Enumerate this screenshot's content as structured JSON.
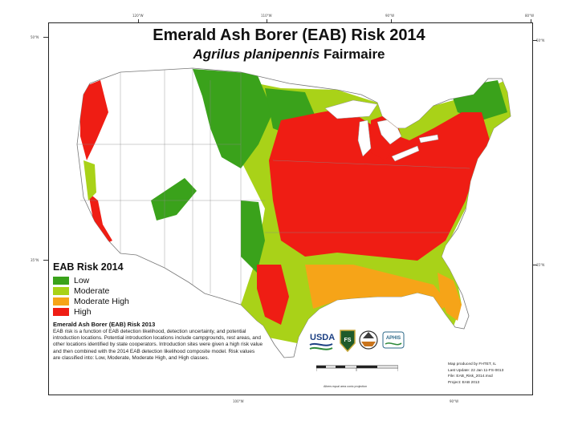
{
  "title": "Emerald Ash Borer (EAB) Risk 2014",
  "subtitle_species": "Agrilus planipennis",
  "subtitle_author": "Fairmaire",
  "legend": {
    "title": "EAB Risk 2014",
    "items": [
      {
        "label": "Low",
        "color": "#3aa21b"
      },
      {
        "label": "Moderate",
        "color": "#a9d218"
      },
      {
        "label": "Moderate High",
        "color": "#f6a418"
      },
      {
        "label": "High",
        "color": "#ef1d14"
      }
    ]
  },
  "note": {
    "title": "Emerald Ash Borer (EAB) Risk 2013",
    "text": "EAB risk is a function of EAB detection likelihood, detection uncertainty, and potential introduction locations. Potential introduction locations include campgrounds, rest areas, and other locations identified by state cooperators. Introduction sites were given a high risk value and then combined with the 2014 EAB detection likelihood composite model. Risk values are classified into: Low, Moderate, Moderate High, and High classes."
  },
  "credits": [
    "Map produced by FHTET, IL",
    "Last Update: 22 Jan 11-FS-0013",
    "File: EAB_Risk_2014.mxd",
    "Project: EAB 2013"
  ],
  "logos": [
    {
      "name": "USDA",
      "text": "USDA"
    },
    {
      "name": "Forest Service",
      "text": "FS"
    },
    {
      "name": "FHTET",
      "text": ""
    },
    {
      "name": "APHIS",
      "text": "APHIS"
    }
  ],
  "scale_caption": "Albers equal area conic projection",
  "graticule_top": [
    "120°W",
    "110°W",
    "90°W",
    "80°W"
  ],
  "graticule_left": [
    "50°N",
    "35°N"
  ],
  "graticule_right": [
    "50°N",
    "35°N"
  ],
  "graticule_bottom": [
    "100°W",
    "90°W"
  ]
}
